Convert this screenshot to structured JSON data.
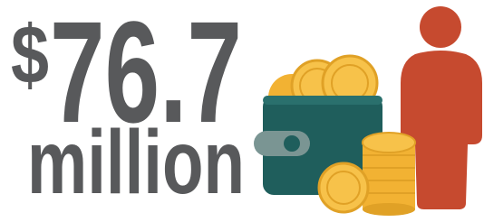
{
  "headline": {
    "currency": "$",
    "amount": "76.7",
    "unit": "million"
  }
}
